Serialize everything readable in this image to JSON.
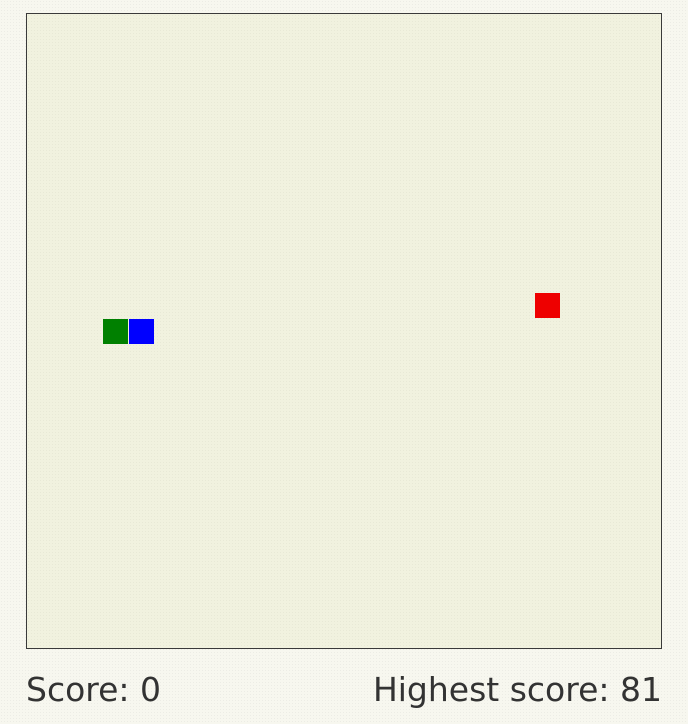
{
  "game": {
    "grid": {
      "cols": 25,
      "rows": 25
    },
    "snake": [
      {
        "part": "tail",
        "col": 3,
        "row": 12,
        "color": "#008000"
      },
      {
        "part": "head",
        "col": 4,
        "row": 12,
        "color": "#0000ff"
      }
    ],
    "food": {
      "col": 20,
      "row": 11,
      "color": "#ee0000"
    }
  },
  "score": {
    "label": "Score: 0",
    "highest_label": "Highest score: 81"
  }
}
